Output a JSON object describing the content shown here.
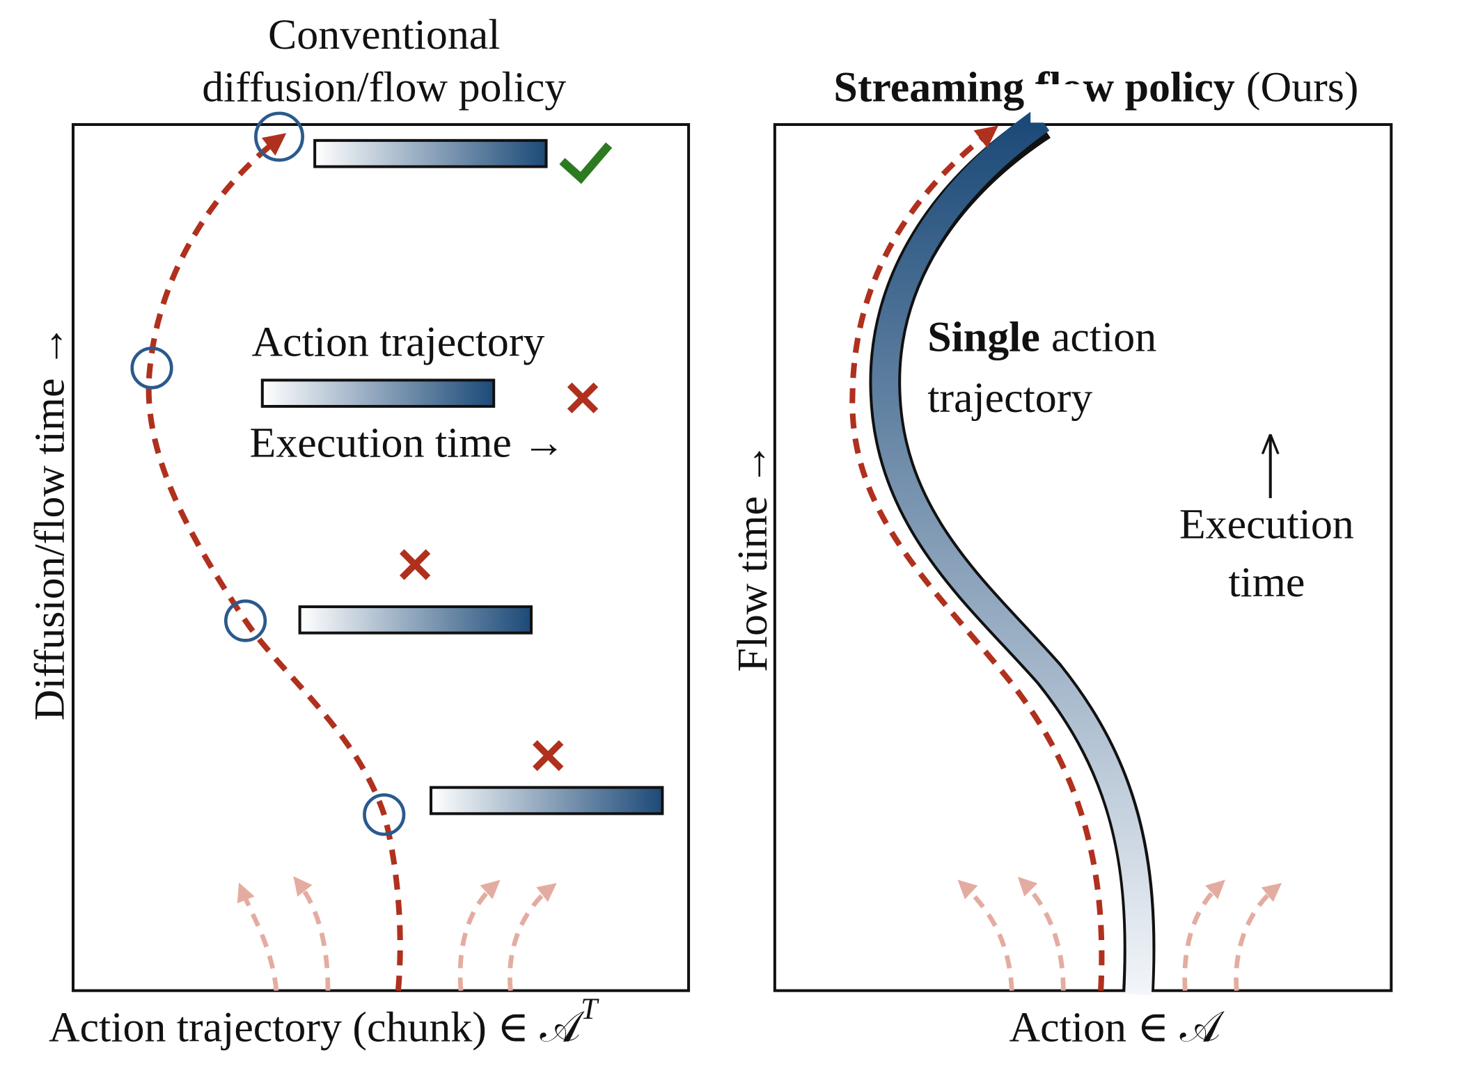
{
  "left": {
    "title": [
      "Conventional",
      "diffusion/flow policy"
    ],
    "y_label": "Diffusion/flow time →",
    "legend_label": "Action trajectory",
    "legend_time": "Execution time →",
    "x_label": "Action trajectory (chunk) ∈ 𝒜",
    "x_label_sup": "T"
  },
  "right": {
    "title_bold": "Streaming flow policy",
    "title_rest": "(Ours)",
    "y_label": "Flow time →",
    "note_bold": "Single",
    "note_rest": "action",
    "note_line2": "trajectory",
    "exec": [
      "Execution",
      "time"
    ],
    "x_label": "Action ∈ 𝒜"
  }
}
